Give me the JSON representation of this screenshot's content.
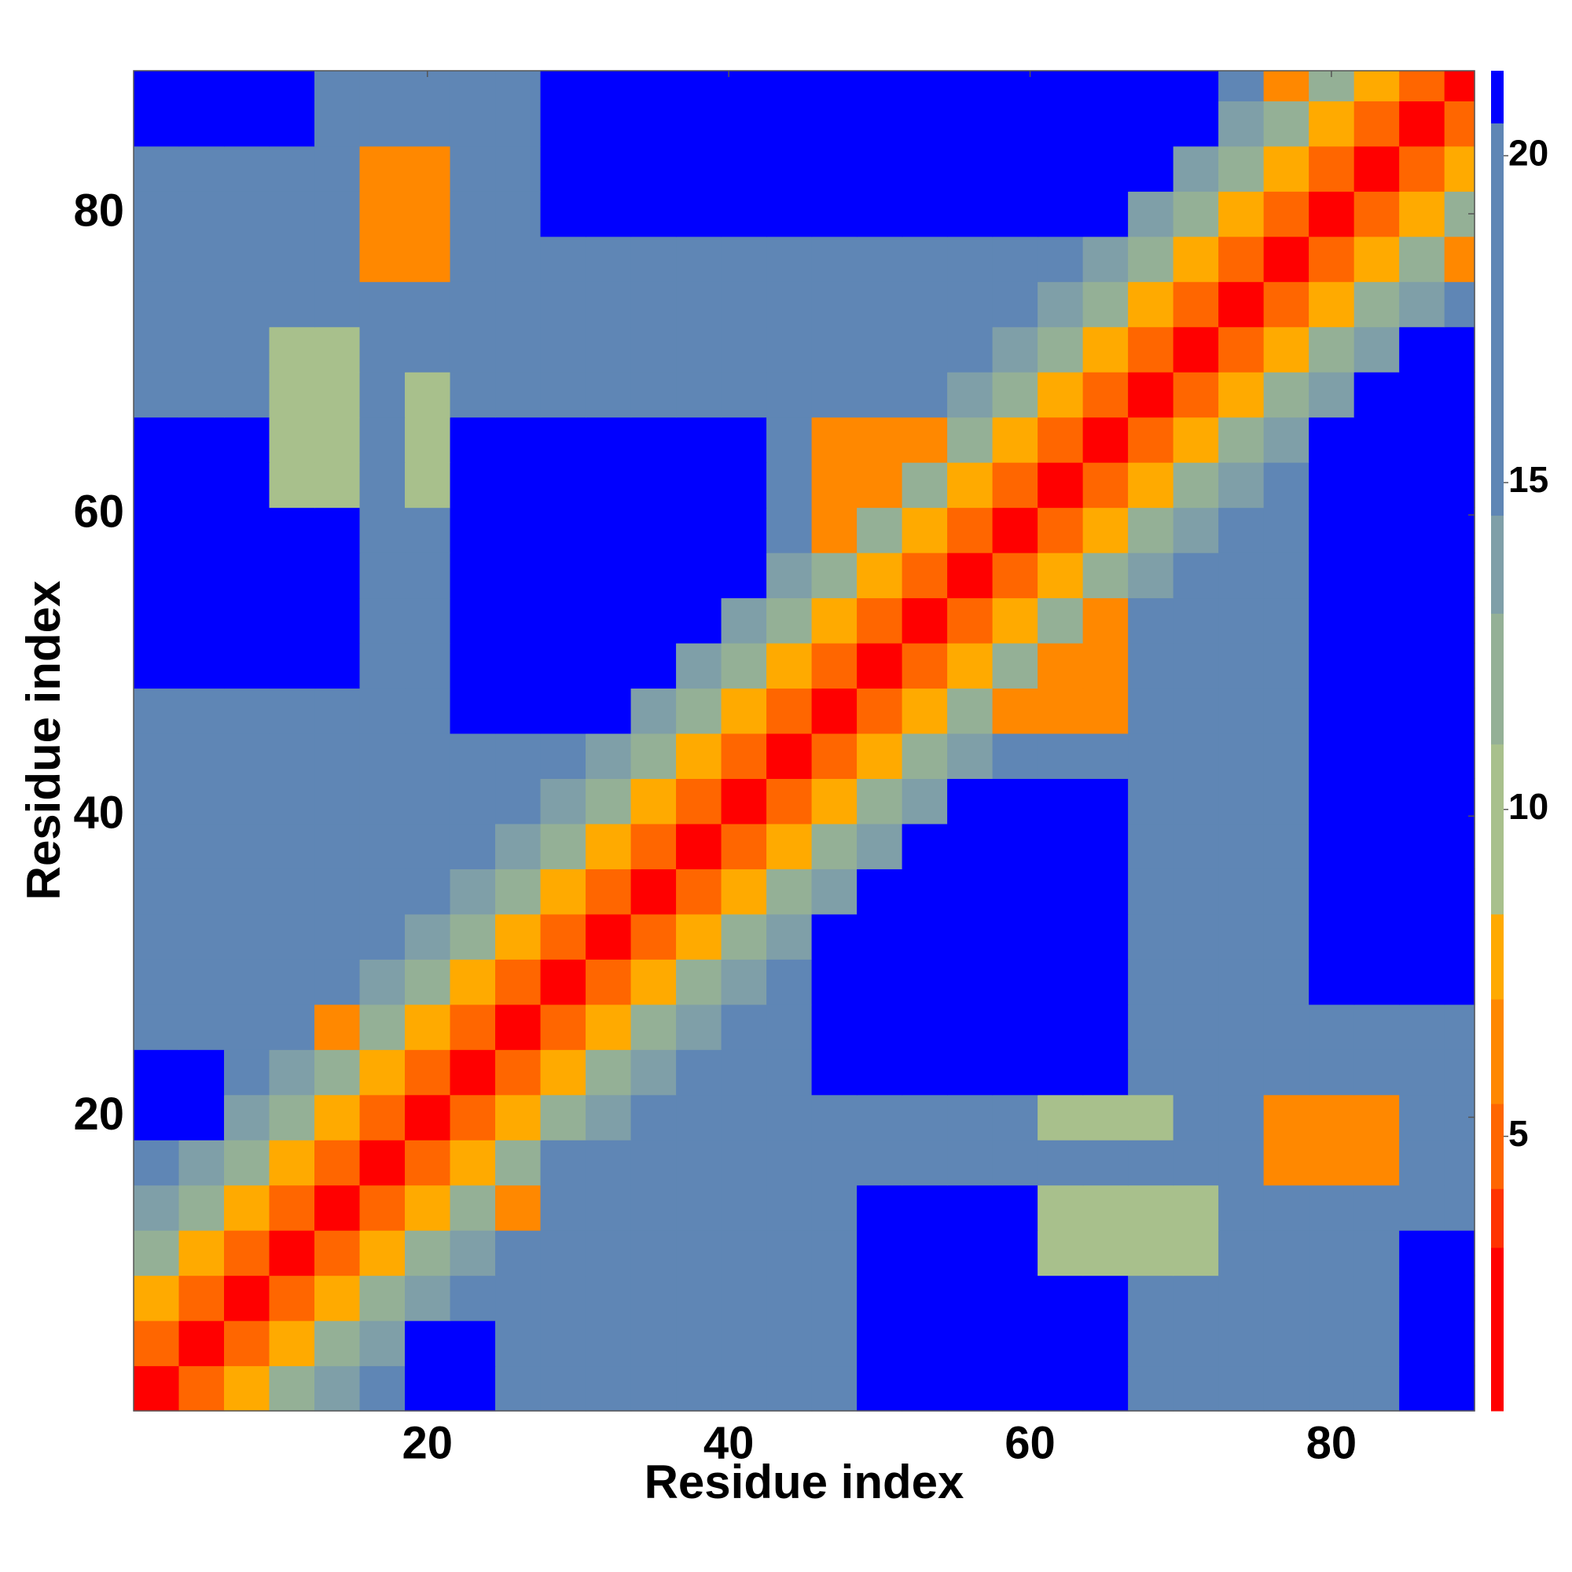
{
  "chart_data": {
    "type": "heatmap",
    "x_label": "Residue index",
    "y_label": "Residue index",
    "xlim": [
      0.5,
      89.5
    ],
    "ylim": [
      0.5,
      89.5
    ],
    "xticks": [
      20,
      40,
      60,
      80
    ],
    "yticks": [
      20,
      40,
      60,
      80
    ],
    "x_edges": [
      0.5,
      3.5,
      6.5,
      9.5,
      12.5,
      15.5,
      18.5,
      21.5,
      24.5,
      27.5,
      30.5,
      33.5,
      36.5,
      39.5,
      42.5,
      45.5,
      48.5,
      51.5,
      54.5,
      57.5,
      60.5,
      63.5,
      66.5,
      69.5,
      72.5,
      75.5,
      78.5,
      81.5,
      84.5,
      87.5,
      89.5
    ],
    "y_edges": [
      0.5,
      3.5,
      6.5,
      9.5,
      12.5,
      15.5,
      18.5,
      21.5,
      24.5,
      27.5,
      30.5,
      33.5,
      36.5,
      39.5,
      42.5,
      45.5,
      48.5,
      51.5,
      54.5,
      57.5,
      60.5,
      63.5,
      66.5,
      69.5,
      72.5,
      75.5,
      78.5,
      81.5,
      84.5,
      87.5,
      89.5
    ],
    "zlim": [
      0.8,
      21.3
    ],
    "zticks": [
      5,
      10,
      15,
      20
    ],
    "colorscale": [
      [
        0.8,
        "#ff0000"
      ],
      [
        3.3,
        "#ff3300"
      ],
      [
        4.2,
        "#ff6600"
      ],
      [
        5.5,
        "#ff8800"
      ],
      [
        7.1,
        "#ffaa00"
      ],
      [
        8.4,
        "#a8c08c"
      ],
      [
        11,
        "#94b096"
      ],
      [
        13,
        "#7f9fa8"
      ],
      [
        14.5,
        "#5f86b5"
      ],
      [
        20.5,
        "#0000ff"
      ]
    ],
    "z": [
      [
        2,
        5,
        8,
        11,
        13,
        15,
        22,
        22,
        15,
        15,
        15,
        15,
        15,
        15,
        15,
        15,
        22,
        22,
        22,
        22,
        22,
        22,
        15,
        15,
        15,
        15,
        15,
        15,
        22,
        22
      ],
      [
        5,
        2,
        5,
        8,
        11,
        13,
        22,
        22,
        15,
        15,
        15,
        15,
        15,
        15,
        15,
        15,
        22,
        22,
        22,
        22,
        22,
        22,
        15,
        15,
        15,
        15,
        15,
        15,
        22,
        22
      ],
      [
        8,
        5,
        2,
        5,
        8,
        11,
        13,
        15,
        15,
        15,
        15,
        15,
        15,
        15,
        15,
        15,
        22,
        22,
        22,
        22,
        22,
        22,
        15,
        15,
        15,
        15,
        15,
        15,
        22,
        22
      ],
      [
        11,
        8,
        5,
        2,
        5,
        8,
        11,
        13,
        15,
        15,
        15,
        15,
        15,
        15,
        15,
        15,
        22,
        22,
        22,
        22,
        9,
        9,
        9,
        9,
        15,
        15,
        15,
        15,
        22,
        22
      ],
      [
        13,
        11,
        8,
        5,
        2,
        5,
        8,
        11,
        7,
        15,
        15,
        15,
        15,
        15,
        15,
        15,
        22,
        22,
        22,
        22,
        9,
        9,
        9,
        9,
        15,
        15,
        15,
        15,
        15,
        15
      ],
      [
        15,
        13,
        11,
        8,
        5,
        2,
        5,
        8,
        11,
        15,
        15,
        15,
        15,
        15,
        15,
        15,
        15,
        15,
        15,
        15,
        15,
        15,
        15,
        15,
        15,
        6,
        6,
        6,
        15,
        15
      ],
      [
        22,
        22,
        13,
        11,
        8,
        5,
        2,
        5,
        8,
        11,
        13,
        15,
        15,
        15,
        15,
        15,
        15,
        15,
        15,
        15,
        9,
        9,
        9,
        15,
        15,
        6,
        6,
        6,
        15,
        15
      ],
      [
        22,
        22,
        15,
        13,
        11,
        8,
        5,
        2,
        5,
        8,
        11,
        13,
        15,
        15,
        15,
        22,
        22,
        22,
        22,
        22,
        22,
        22,
        15,
        15,
        15,
        15,
        15,
        15,
        15,
        15
      ],
      [
        15,
        15,
        15,
        15,
        7,
        11,
        8,
        5,
        2,
        5,
        8,
        11,
        13,
        15,
        15,
        22,
        22,
        22,
        22,
        22,
        22,
        22,
        15,
        15,
        15,
        15,
        15,
        15,
        15,
        15
      ],
      [
        15,
        15,
        15,
        15,
        15,
        13,
        11,
        8,
        5,
        2,
        5,
        8,
        11,
        13,
        15,
        22,
        22,
        22,
        22,
        22,
        22,
        22,
        15,
        15,
        15,
        15,
        22,
        22,
        22,
        22
      ],
      [
        15,
        15,
        15,
        15,
        15,
        15,
        13,
        11,
        8,
        5,
        2,
        5,
        8,
        11,
        13,
        22,
        22,
        22,
        22,
        22,
        22,
        22,
        15,
        15,
        15,
        15,
        22,
        22,
        22,
        22
      ],
      [
        15,
        15,
        15,
        15,
        15,
        15,
        15,
        13,
        11,
        8,
        5,
        2,
        5,
        8,
        11,
        13,
        22,
        22,
        22,
        22,
        22,
        22,
        15,
        15,
        15,
        15,
        22,
        22,
        22,
        22
      ],
      [
        15,
        15,
        15,
        15,
        15,
        15,
        15,
        15,
        13,
        11,
        8,
        5,
        2,
        5,
        8,
        11,
        13,
        22,
        22,
        22,
        22,
        22,
        15,
        15,
        15,
        15,
        22,
        22,
        22,
        22
      ],
      [
        15,
        15,
        15,
        15,
        15,
        15,
        15,
        15,
        15,
        13,
        11,
        8,
        5,
        2,
        5,
        8,
        11,
        13,
        22,
        22,
        22,
        22,
        15,
        15,
        15,
        15,
        22,
        22,
        22,
        22
      ],
      [
        15,
        15,
        15,
        15,
        15,
        15,
        15,
        15,
        15,
        15,
        13,
        11,
        8,
        5,
        2,
        5,
        8,
        11,
        13,
        15,
        15,
        15,
        15,
        15,
        15,
        15,
        22,
        22,
        22,
        22
      ],
      [
        15,
        15,
        15,
        15,
        15,
        15,
        15,
        22,
        22,
        22,
        22,
        13,
        11,
        8,
        5,
        2,
        5,
        8,
        11,
        7,
        7,
        7,
        15,
        15,
        15,
        15,
        22,
        22,
        22,
        22
      ],
      [
        22,
        22,
        22,
        22,
        22,
        15,
        15,
        22,
        22,
        22,
        22,
        22,
        13,
        11,
        8,
        5,
        2,
        5,
        8,
        11,
        7,
        7,
        15,
        15,
        15,
        15,
        22,
        22,
        22,
        22
      ],
      [
        22,
        22,
        22,
        22,
        22,
        15,
        15,
        22,
        22,
        22,
        22,
        22,
        22,
        13,
        11,
        8,
        5,
        2,
        5,
        8,
        11,
        7,
        15,
        15,
        15,
        15,
        22,
        22,
        22,
        22
      ],
      [
        22,
        22,
        22,
        22,
        22,
        15,
        15,
        22,
        22,
        22,
        22,
        22,
        22,
        22,
        13,
        11,
        8,
        5,
        2,
        5,
        8,
        11,
        13,
        15,
        15,
        15,
        22,
        22,
        22,
        22
      ],
      [
        22,
        22,
        22,
        22,
        22,
        15,
        15,
        22,
        22,
        22,
        22,
        22,
        22,
        22,
        15,
        7,
        11,
        8,
        5,
        2,
        5,
        8,
        11,
        13,
        15,
        15,
        22,
        22,
        22,
        22
      ],
      [
        22,
        22,
        22,
        9,
        9,
        15,
        9,
        22,
        22,
        22,
        22,
        22,
        22,
        22,
        15,
        7,
        7,
        11,
        8,
        5,
        2,
        5,
        8,
        11,
        13,
        15,
        22,
        22,
        22,
        22
      ],
      [
        22,
        22,
        22,
        9,
        9,
        15,
        9,
        22,
        22,
        22,
        22,
        22,
        22,
        22,
        15,
        7,
        7,
        7,
        11,
        8,
        5,
        2,
        5,
        8,
        11,
        13,
        22,
        22,
        22,
        22
      ],
      [
        15,
        15,
        15,
        9,
        9,
        15,
        9,
        15,
        15,
        15,
        15,
        15,
        15,
        15,
        15,
        15,
        15,
        15,
        13,
        11,
        8,
        5,
        2,
        5,
        8,
        11,
        13,
        22,
        22,
        22
      ],
      [
        15,
        15,
        15,
        9,
        9,
        15,
        15,
        15,
        15,
        15,
        15,
        15,
        15,
        15,
        15,
        15,
        15,
        15,
        15,
        13,
        11,
        8,
        5,
        2,
        5,
        8,
        11,
        13,
        22,
        22
      ],
      [
        15,
        15,
        15,
        15,
        15,
        15,
        15,
        15,
        15,
        15,
        15,
        15,
        15,
        15,
        15,
        15,
        15,
        15,
        15,
        15,
        13,
        11,
        8,
        5,
        2,
        5,
        8,
        11,
        13,
        15
      ],
      [
        15,
        15,
        15,
        15,
        15,
        6,
        6,
        15,
        15,
        15,
        15,
        15,
        15,
        15,
        15,
        15,
        15,
        15,
        15,
        15,
        15,
        13,
        11,
        8,
        5,
        2,
        5,
        8,
        11,
        7
      ],
      [
        15,
        15,
        15,
        15,
        15,
        6,
        6,
        15,
        15,
        22,
        22,
        22,
        22,
        22,
        22,
        22,
        22,
        22,
        22,
        22,
        22,
        22,
        13,
        11,
        8,
        5,
        2,
        5,
        8,
        11
      ],
      [
        15,
        15,
        15,
        15,
        15,
        6,
        6,
        15,
        15,
        22,
        22,
        22,
        22,
        22,
        22,
        22,
        22,
        22,
        22,
        22,
        22,
        22,
        22,
        13,
        11,
        8,
        5,
        2,
        5,
        8
      ],
      [
        22,
        22,
        22,
        22,
        15,
        15,
        15,
        15,
        15,
        22,
        22,
        22,
        22,
        22,
        22,
        22,
        22,
        22,
        22,
        22,
        22,
        22,
        22,
        22,
        13,
        11,
        8,
        5,
        2,
        5
      ],
      [
        22,
        22,
        22,
        22,
        15,
        15,
        15,
        15,
        15,
        22,
        22,
        22,
        22,
        22,
        22,
        22,
        22,
        22,
        22,
        22,
        22,
        22,
        22,
        22,
        15,
        7,
        11,
        8,
        5,
        2
      ]
    ]
  }
}
